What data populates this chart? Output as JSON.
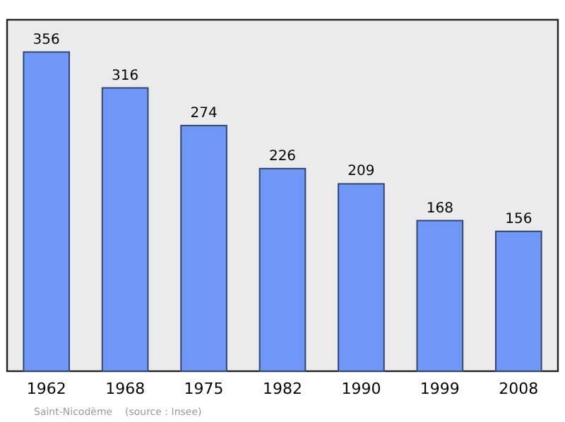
{
  "chart_data": {
    "type": "bar",
    "categories": [
      "1962",
      "1968",
      "1975",
      "1982",
      "1990",
      "1999",
      "2008"
    ],
    "values": [
      356,
      316,
      274,
      226,
      209,
      168,
      156
    ],
    "color": "#6e97f8",
    "ylim": [
      0,
      392
    ],
    "data_labels": true,
    "tick_labels": "x",
    "annotations": [
      "Saint-Nicodème    (source : Insee)"
    ]
  }
}
